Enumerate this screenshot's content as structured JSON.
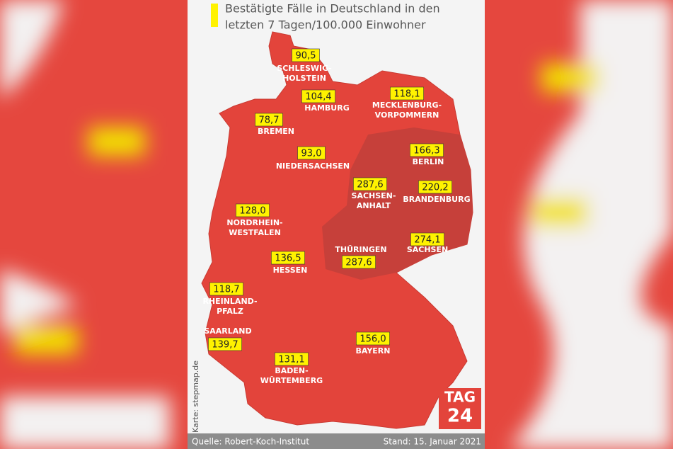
{
  "header": {
    "title_lines": [
      "Bestätigte Fälle in Deutschland in den",
      "letzten 7 Tagen/100.000 Einwohner"
    ]
  },
  "states": [
    {
      "name_lines": [
        "SCHLESWIG-",
        "HOLSTEIN"
      ],
      "value": "90,5"
    },
    {
      "name_lines": [
        "HAMBURG"
      ],
      "value": "104,4"
    },
    {
      "name_lines": [
        "MECKLENBURG-",
        "VORPOMMERN"
      ],
      "value": "118,1"
    },
    {
      "name_lines": [
        "BREMEN"
      ],
      "value": "78,7"
    },
    {
      "name_lines": [
        "NIEDERSACHSEN"
      ],
      "value": "93,0"
    },
    {
      "name_lines": [
        "BERLIN"
      ],
      "value": "166,3"
    },
    {
      "name_lines": [
        "SACHSEN-",
        "ANHALT"
      ],
      "value": "287,6"
    },
    {
      "name_lines": [
        "BRANDENBURG"
      ],
      "value": "220,2"
    },
    {
      "name_lines": [
        "NORDRHEIN-",
        "WESTFALEN"
      ],
      "value": "128,0"
    },
    {
      "name_lines": [
        "SACHSEN"
      ],
      "value": "274,1"
    },
    {
      "name_lines": [
        "THÜRINGEN"
      ],
      "value": "287,6"
    },
    {
      "name_lines": [
        "HESSEN"
      ],
      "value": "136,5"
    },
    {
      "name_lines": [
        "RHEINLAND-",
        "PFALZ"
      ],
      "value": "118,7"
    },
    {
      "name_lines": [
        "SAARLAND"
      ],
      "value": "139,7"
    },
    {
      "name_lines": [
        "BAYERN"
      ],
      "value": "156,0"
    },
    {
      "name_lines": [
        "BADEN-",
        "WÜRTEMBERG"
      ],
      "value": "131,1"
    }
  ],
  "credit": "Karte: stepmap.de",
  "logo": [
    "TAG",
    "24"
  ],
  "footer": {
    "source": "Quelle: Robert-Koch-Institut",
    "date": "Stand: 15. Januar 2021"
  }
}
